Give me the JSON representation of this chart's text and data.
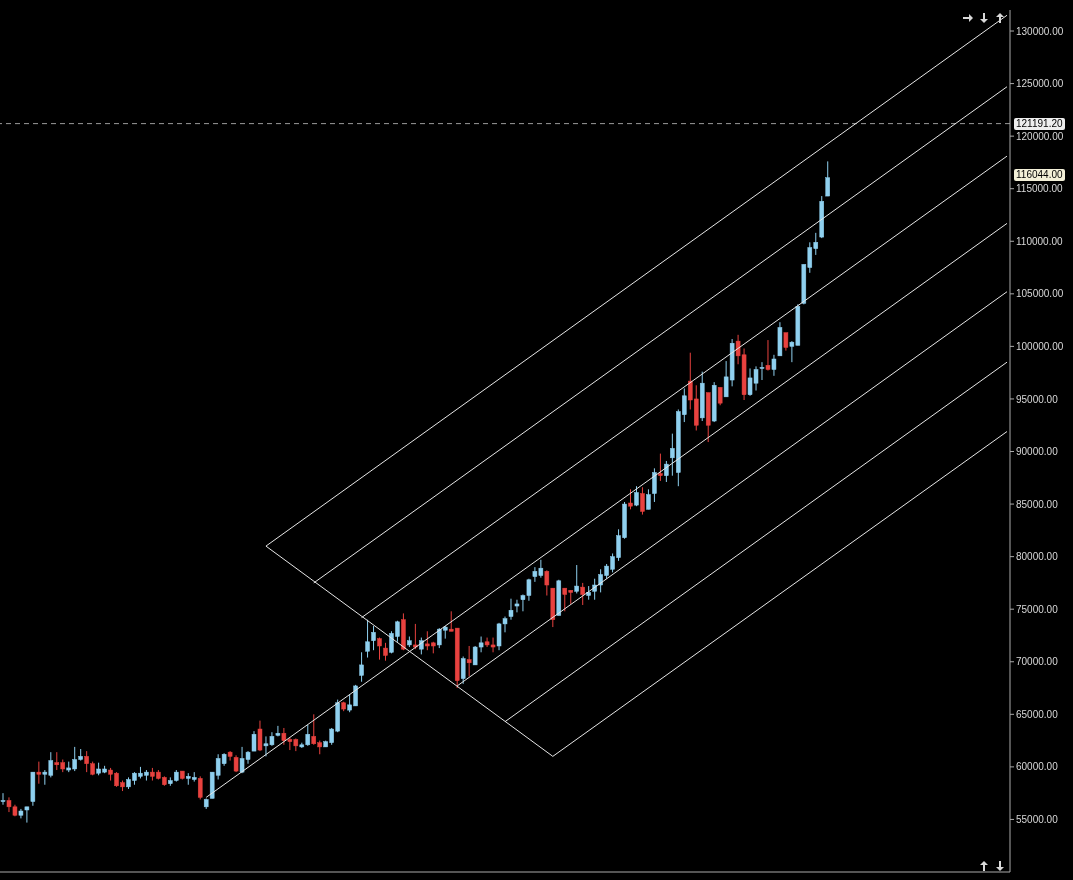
{
  "chart_data": {
    "type": "candlestick",
    "categories": [
      null,
      null,
      null,
      null,
      null,
      null,
      null,
      null,
      null,
      null,
      null,
      null,
      null,
      null,
      null,
      null,
      null,
      null,
      null,
      null,
      null,
      null,
      null,
      null,
      null,
      null,
      null,
      null,
      null,
      null,
      null,
      null,
      null,
      null,
      null,
      null,
      null,
      null,
      null,
      null,
      null,
      null,
      null,
      null,
      null,
      null,
      null,
      null,
      null,
      null,
      null,
      null,
      null,
      null,
      null,
      null,
      null,
      null,
      null,
      null,
      null,
      null,
      null,
      null,
      null,
      null,
      null,
      null,
      null,
      null,
      null,
      null,
      null,
      null,
      null,
      null,
      null,
      null,
      null,
      null,
      null,
      null,
      null,
      null,
      null,
      null,
      null,
      null,
      null,
      null,
      null,
      null,
      null,
      null,
      null,
      null,
      null,
      null,
      null,
      null,
      null,
      null,
      null,
      null,
      null,
      null,
      null,
      null,
      null,
      null,
      null,
      null,
      null,
      null,
      null,
      null,
      null,
      null,
      null,
      null,
      null,
      null,
      null,
      null,
      null,
      null,
      null,
      null,
      null,
      null,
      null,
      null,
      null,
      null,
      null,
      null,
      null,
      null,
      null,
      null,
      null,
      null,
      null,
      null,
      null,
      null,
      null,
      null,
      null,
      null,
      null,
      null,
      null,
      null,
      null,
      null,
      null,
      null,
      null,
      null,
      null,
      null,
      null,
      null,
      null,
      null,
      null,
      null,
      null
    ],
    "ohlc": [
      [
        56700,
        57500,
        56400,
        56800
      ],
      [
        56800,
        57100,
        55700,
        56200
      ],
      [
        56200,
        56400,
        55300,
        55400
      ],
      [
        55400,
        56000,
        55100,
        55800
      ],
      [
        55900,
        56200,
        54700,
        56200
      ],
      [
        56700,
        59500,
        56300,
        59500
      ],
      [
        59500,
        60500,
        58400,
        59300
      ],
      [
        59300,
        59700,
        58300,
        59500
      ],
      [
        59200,
        61400,
        59000,
        60600
      ],
      [
        60400,
        61400,
        59700,
        60200
      ],
      [
        60400,
        60700,
        59500,
        59800
      ],
      [
        59700,
        60500,
        59500,
        59900
      ],
      [
        59800,
        61900,
        59600,
        60700
      ],
      [
        60700,
        61700,
        60600,
        61000
      ],
      [
        61000,
        61500,
        59500,
        60300
      ],
      [
        60300,
        60500,
        59200,
        59300
      ],
      [
        59400,
        60400,
        59200,
        59800
      ],
      [
        59500,
        60100,
        59400,
        59800
      ],
      [
        59700,
        59900,
        58700,
        59300
      ],
      [
        59400,
        59500,
        58100,
        58200
      ],
      [
        58500,
        58700,
        57700,
        58100
      ],
      [
        58100,
        59000,
        57900,
        58800
      ],
      [
        58700,
        59500,
        58300,
        59400
      ],
      [
        59100,
        60000,
        58900,
        59400
      ],
      [
        59200,
        59700,
        58700,
        59500
      ],
      [
        59500,
        59900,
        58700,
        59100
      ],
      [
        59500,
        59700,
        58800,
        58900
      ],
      [
        59000,
        59100,
        58200,
        58300
      ],
      [
        58400,
        59000,
        58200,
        58700
      ],
      [
        58700,
        59700,
        58600,
        59500
      ],
      [
        59600,
        59600,
        58800,
        58900
      ],
      [
        58900,
        59400,
        58300,
        59100
      ],
      [
        58800,
        59500,
        58600,
        59000
      ],
      [
        58900,
        59100,
        56900,
        57100
      ],
      [
        56200,
        57000,
        56000,
        56900
      ],
      [
        57000,
        59500,
        57000,
        59500
      ],
      [
        59200,
        61200,
        58800,
        60800
      ],
      [
        60300,
        61300,
        60100,
        61200
      ],
      [
        61400,
        61500,
        60600,
        61000
      ],
      [
        60900,
        61100,
        59500,
        59600
      ],
      [
        59500,
        61900,
        59400,
        60800
      ],
      [
        60700,
        61500,
        60300,
        61400
      ],
      [
        61500,
        63400,
        61500,
        63100
      ],
      [
        63600,
        64400,
        61500,
        61600
      ],
      [
        62000,
        62900,
        61000,
        62200
      ],
      [
        62100,
        63300,
        62000,
        62900
      ],
      [
        63000,
        63900,
        62900,
        63200
      ],
      [
        63200,
        63700,
        62100,
        62500
      ],
      [
        62600,
        62800,
        61600,
        62400
      ],
      [
        62600,
        62700,
        61500,
        62000
      ],
      [
        61900,
        62300,
        61800,
        62100
      ],
      [
        62100,
        64000,
        62000,
        63100
      ],
      [
        62900,
        65000,
        62100,
        62200
      ],
      [
        62300,
        62500,
        61200,
        61900
      ],
      [
        61900,
        62500,
        61900,
        62400
      ],
      [
        62300,
        63700,
        62100,
        63600
      ],
      [
        63400,
        66400,
        63300,
        66100
      ],
      [
        66100,
        66200,
        65300,
        65500
      ],
      [
        65400,
        66900,
        65200,
        65900
      ],
      [
        65800,
        67800,
        65800,
        67700
      ],
      [
        68700,
        70900,
        68100,
        69700
      ],
      [
        71000,
        74000,
        70400,
        71900
      ],
      [
        72000,
        73400,
        71100,
        72800
      ],
      [
        72200,
        72300,
        70200,
        71500
      ],
      [
        71300,
        71800,
        70100,
        70600
      ],
      [
        70900,
        72900,
        70800,
        72700
      ],
      [
        72400,
        73900,
        71900,
        73800
      ],
      [
        74000,
        74600,
        71100,
        71200
      ],
      [
        71600,
        72400,
        71400,
        72000
      ],
      [
        71600,
        73600,
        71200,
        71400
      ],
      [
        71200,
        72300,
        70700,
        72000
      ],
      [
        71700,
        72900,
        71100,
        71500
      ],
      [
        71800,
        71900,
        70800,
        71500
      ],
      [
        71600,
        73200,
        71300,
        73100
      ],
      [
        73000,
        73400,
        72200,
        73300
      ],
      [
        73100,
        74800,
        72900,
        72900
      ],
      [
        73200,
        73200,
        67500,
        68200
      ],
      [
        68400,
        70500,
        67900,
        70300
      ],
      [
        70200,
        71500,
        68600,
        69900
      ],
      [
        69700,
        71500,
        69700,
        71400
      ],
      [
        71400,
        72400,
        70900,
        71800
      ],
      [
        71900,
        72300,
        71400,
        71600
      ],
      [
        71600,
        72300,
        70900,
        71400
      ],
      [
        71500,
        73700,
        71100,
        73600
      ],
      [
        73600,
        74300,
        72800,
        74100
      ],
      [
        74300,
        76000,
        74000,
        74900
      ],
      [
        75300,
        75900,
        74700,
        75500
      ],
      [
        75900,
        76400,
        74800,
        76300
      ],
      [
        76300,
        77900,
        75800,
        77800
      ],
      [
        78100,
        79000,
        77600,
        78600
      ],
      [
        78200,
        79700,
        78000,
        78900
      ],
      [
        78600,
        78700,
        76300,
        77300
      ],
      [
        77000,
        77000,
        73300,
        74000
      ],
      [
        74400,
        77800,
        74400,
        77700
      ],
      [
        77000,
        77000,
        74800,
        76400
      ],
      [
        76800,
        76800,
        75500,
        76600
      ],
      [
        76700,
        79200,
        76500,
        77200
      ],
      [
        77100,
        77500,
        75400,
        76400
      ],
      [
        76300,
        77200,
        75900,
        76600
      ],
      [
        76700,
        77900,
        75900,
        77300
      ],
      [
        77300,
        78800,
        76600,
        78300
      ],
      [
        78200,
        79300,
        77900,
        79100
      ],
      [
        78800,
        80300,
        78500,
        80000
      ],
      [
        79900,
        82600,
        79600,
        82000
      ],
      [
        81800,
        85200,
        81700,
        85000
      ],
      [
        85100,
        86400,
        84500,
        84800
      ],
      [
        84900,
        86700,
        84800,
        86100
      ],
      [
        86000,
        86600,
        84000,
        84300
      ],
      [
        84500,
        86400,
        84500,
        85900
      ],
      [
        86000,
        88400,
        85200,
        88000
      ],
      [
        87900,
        89800,
        87200,
        87700
      ],
      [
        87700,
        89100,
        87100,
        88800
      ],
      [
        89400,
        91700,
        87700,
        90300
      ],
      [
        88000,
        94000,
        86700,
        93800
      ],
      [
        93500,
        96000,
        92800,
        95300
      ],
      [
        96700,
        99400,
        94000,
        94900
      ],
      [
        95000,
        96300,
        92000,
        92500
      ],
      [
        93200,
        97600,
        92900,
        96500
      ],
      [
        95600,
        95600,
        90900,
        92500
      ],
      [
        92900,
        96600,
        92800,
        96300
      ],
      [
        96100,
        96100,
        94400,
        94600
      ],
      [
        95200,
        98600,
        95200,
        97100
      ],
      [
        96800,
        100700,
        96200,
        100300
      ],
      [
        100500,
        101100,
        98300,
        99100
      ],
      [
        99200,
        99800,
        94900,
        95400
      ],
      [
        95400,
        97900,
        95300,
        97000
      ],
      [
        96500,
        98100,
        95800,
        97800
      ],
      [
        97900,
        98500,
        96800,
        98000
      ],
      [
        98200,
        100600,
        97700,
        97800
      ],
      [
        97800,
        99200,
        97200,
        98800
      ],
      [
        99100,
        102300,
        99100,
        101800
      ],
      [
        101300,
        101300,
        99600,
        99900
      ],
      [
        100000,
        100500,
        98500,
        100400
      ],
      [
        100100,
        104000,
        100100,
        103800
      ],
      [
        104100,
        107800,
        104000,
        107800
      ],
      [
        107500,
        109900,
        107000,
        109400
      ],
      [
        109300,
        110800,
        108700,
        109900
      ],
      [
        110400,
        114300,
        110300,
        113800
      ],
      [
        114300,
        117600,
        114300,
        116044
      ],
      null,
      null,
      null,
      null,
      null,
      null,
      null,
      null,
      null,
      null,
      null,
      null,
      null,
      null,
      null,
      null,
      null,
      null,
      null,
      null,
      null,
      null,
      null,
      null,
      null,
      null,
      null,
      null,
      null,
      null
    ],
    "colors": [
      "#8fd0ef",
      "#e8423f",
      "#e8423f",
      "#8fd0ef",
      "#8fd0ef",
      "#8fd0ef",
      "#e8423f",
      "#8fd0ef",
      "#8fd0ef",
      "#e8423f",
      "#e8423f",
      "#8fd0ef",
      "#8fd0ef",
      "#8fd0ef",
      "#e8423f",
      "#e8423f",
      "#8fd0ef",
      "#8fd0ef",
      "#e8423f",
      "#e8423f",
      "#e8423f",
      "#8fd0ef",
      "#8fd0ef",
      "#8fd0ef",
      "#8fd0ef",
      "#e8423f",
      "#e8423f",
      "#e8423f",
      "#8fd0ef",
      "#8fd0ef",
      "#e8423f",
      "#8fd0ef",
      "#8fd0ef",
      "#e8423f",
      "#8fd0ef",
      "#8fd0ef",
      "#8fd0ef",
      "#8fd0ef",
      "#e8423f",
      "#e8423f",
      "#8fd0ef",
      "#8fd0ef",
      "#8fd0ef",
      "#e8423f",
      "#8fd0ef",
      "#8fd0ef",
      "#8fd0ef",
      "#e8423f",
      "#e8423f",
      "#e8423f",
      "#8fd0ef",
      "#8fd0ef",
      "#e8423f",
      "#e8423f",
      "#8fd0ef",
      "#8fd0ef",
      "#8fd0ef",
      "#e8423f",
      "#8fd0ef",
      "#8fd0ef",
      "#8fd0ef",
      "#8fd0ef",
      "#8fd0ef",
      "#e8423f",
      "#e8423f",
      "#8fd0ef",
      "#8fd0ef",
      "#e8423f",
      "#8fd0ef",
      "#e8423f",
      "#8fd0ef",
      "#e8423f",
      "#e8423f",
      "#8fd0ef",
      "#8fd0ef",
      "#e8423f",
      "#e8423f",
      "#8fd0ef",
      "#e8423f",
      "#8fd0ef",
      "#8fd0ef",
      "#e8423f",
      "#e8423f",
      "#8fd0ef",
      "#8fd0ef",
      "#8fd0ef",
      "#8fd0ef",
      "#8fd0ef",
      "#8fd0ef",
      "#8fd0ef",
      "#8fd0ef",
      "#e8423f",
      "#e8423f",
      "#8fd0ef",
      "#e8423f",
      "#e8423f",
      "#8fd0ef",
      "#e8423f",
      "#8fd0ef",
      "#8fd0ef",
      "#8fd0ef",
      "#8fd0ef",
      "#8fd0ef",
      "#8fd0ef",
      "#8fd0ef",
      "#e8423f",
      "#8fd0ef",
      "#e8423f",
      "#8fd0ef",
      "#8fd0ef",
      "#e8423f",
      "#8fd0ef",
      "#8fd0ef",
      "#8fd0ef",
      "#8fd0ef",
      "#e8423f",
      "#e8423f",
      "#8fd0ef",
      "#e8423f",
      "#8fd0ef",
      "#e8423f",
      "#8fd0ef",
      "#8fd0ef",
      "#e8423f",
      "#e8423f",
      "#8fd0ef",
      "#8fd0ef",
      "#8fd0ef",
      "#e8423f",
      "#8fd0ef",
      "#8fd0ef",
      "#e8423f",
      "#8fd0ef",
      "#8fd0ef",
      "#8fd0ef",
      "#8fd0ef",
      "#8fd0ef",
      "#8fd0ef",
      "#8fd0ef",
      null,
      null,
      null,
      null,
      null,
      null,
      null,
      null,
      null,
      null,
      null,
      null,
      null,
      null,
      null,
      null,
      null,
      null,
      null,
      null,
      null,
      null,
      null,
      null,
      null,
      null,
      null,
      null,
      null,
      null
    ],
    "series": [
      {
        "type": "line",
        "color": "#e6e6e6",
        "values": [
          null,
          null,
          null,
          null,
          null,
          null,
          null,
          null,
          null,
          null,
          null,
          null,
          null,
          null,
          null,
          null,
          null,
          null,
          null,
          null,
          null,
          null,
          null,
          null,
          null,
          null,
          null,
          null,
          null,
          null,
          null,
          null,
          null,
          null,
          null,
          null,
          null,
          null,
          null,
          null,
          null,
          null,
          null,
          null,
          81000,
          null,
          null,
          null,
          null,
          null,
          null,
          null,
          null,
          null,
          null,
          null,
          null,
          null,
          null,
          null,
          null,
          null,
          null,
          null,
          null,
          null,
          null,
          null,
          null,
          null,
          null,
          null,
          null,
          null,
          null,
          null,
          null,
          null,
          null,
          null,
          null,
          null,
          null,
          null,
          null,
          null,
          null,
          null,
          null,
          null,
          null,
          null,
          null,
          null,
          null,
          null,
          null,
          null,
          null,
          null,
          null,
          null,
          null,
          null,
          null,
          null,
          null,
          null,
          null,
          null,
          null,
          null,
          null,
          null,
          null,
          null,
          null,
          null,
          null,
          null,
          null,
          null,
          null,
          null,
          null,
          null,
          null,
          null,
          null,
          null,
          null,
          null,
          null,
          null,
          null,
          null,
          null,
          null,
          null,
          null,
          null,
          null,
          null,
          null,
          null,
          null,
          null,
          null,
          null,
          null,
          null,
          null,
          null,
          null,
          null,
          null,
          null,
          null,
          null,
          null,
          null,
          null,
          null,
          null,
          null,
          null,
          null,
          null,
          131500
        ]
      },
      {
        "type": "line",
        "color": "#e6e6e6",
        "values": [
          null,
          null,
          null,
          null,
          null,
          null,
          null,
          null,
          null,
          null,
          null,
          null,
          null,
          null,
          null,
          null,
          null,
          null,
          null,
          null,
          null,
          null,
          null,
          null,
          null,
          null,
          null,
          null,
          null,
          null,
          null,
          null,
          null,
          null,
          null,
          null,
          null,
          null,
          null,
          null,
          null,
          null,
          null,
          null,
          null,
          null,
          null,
          null,
          null,
          null,
          null,
          null,
          77500,
          null,
          null,
          null,
          null,
          null,
          null,
          null,
          null,
          null,
          null,
          null,
          null,
          null,
          null,
          null,
          null,
          null,
          null,
          null,
          null,
          null,
          null,
          null,
          null,
          null,
          null,
          null,
          null,
          null,
          null,
          null,
          null,
          null,
          null,
          null,
          null,
          null,
          null,
          null,
          null,
          null,
          null,
          null,
          null,
          null,
          null,
          null,
          null,
          null,
          null,
          null,
          null,
          null,
          null,
          null,
          null,
          null,
          null,
          null,
          null,
          null,
          null,
          null,
          null,
          null,
          null,
          null,
          null,
          null,
          null,
          null,
          null,
          null,
          null,
          null,
          null,
          null,
          null,
          null,
          null,
          null,
          null,
          null,
          null,
          null,
          null,
          null,
          null,
          null,
          null,
          null,
          null,
          null,
          null,
          null,
          null,
          null,
          null,
          null,
          null,
          null,
          null,
          null,
          null,
          null,
          null,
          null,
          null,
          null,
          null,
          null,
          null,
          null,
          null,
          null,
          124700
        ]
      },
      {
        "type": "line",
        "color": "#e6e6e6",
        "values": [
          null,
          null,
          null,
          null,
          null,
          null,
          null,
          null,
          null,
          null,
          null,
          null,
          null,
          null,
          null,
          null,
          null,
          null,
          null,
          null,
          null,
          null,
          null,
          null,
          null,
          null,
          null,
          null,
          null,
          null,
          null,
          null,
          null,
          null,
          null,
          null,
          null,
          null,
          null,
          null,
          null,
          null,
          null,
          null,
          null,
          null,
          null,
          null,
          null,
          null,
          null,
          null,
          null,
          null,
          null,
          null,
          null,
          null,
          null,
          null,
          74200,
          null,
          null,
          null,
          null,
          null,
          null,
          null,
          null,
          null,
          null,
          null,
          null,
          null,
          null,
          null,
          null,
          null,
          null,
          null,
          null,
          null,
          null,
          null,
          null,
          null,
          null,
          null,
          null,
          null,
          null,
          null,
          null,
          null,
          null,
          null,
          null,
          null,
          null,
          null,
          null,
          null,
          null,
          null,
          null,
          null,
          null,
          null,
          null,
          null,
          null,
          null,
          null,
          null,
          null,
          null,
          null,
          null,
          null,
          null,
          null,
          null,
          null,
          null,
          null,
          null,
          null,
          null,
          null,
          null,
          null,
          null,
          null,
          null,
          null,
          null,
          null,
          null,
          null,
          null,
          null,
          null,
          null,
          null,
          null,
          null,
          null,
          null,
          null,
          null,
          null,
          null,
          null,
          null,
          null,
          null,
          null,
          null,
          null,
          null,
          null,
          null,
          null,
          null,
          null,
          null,
          null,
          null,
          118100
        ]
      },
      {
        "type": "line",
        "color": "#e6e6e6",
        "values": [
          null,
          null,
          null,
          null,
          null,
          null,
          null,
          null,
          null,
          null,
          null,
          null,
          null,
          null,
          null,
          null,
          null,
          null,
          null,
          null,
          null,
          null,
          null,
          null,
          null,
          null,
          null,
          null,
          null,
          null,
          null,
          null,
          null,
          null,
          57100,
          null,
          null,
          null,
          null,
          null,
          null,
          null,
          null,
          null,
          null,
          null,
          null,
          null,
          null,
          null,
          null,
          null,
          null,
          null,
          null,
          null,
          null,
          null,
          null,
          null,
          null,
          null,
          null,
          null,
          null,
          null,
          null,
          null,
          null,
          null,
          null,
          null,
          null,
          null,
          null,
          null,
          null,
          null,
          null,
          null,
          null,
          null,
          null,
          null,
          null,
          null,
          null,
          null,
          null,
          null,
          null,
          null,
          null,
          null,
          null,
          null,
          null,
          null,
          null,
          null,
          null,
          null,
          null,
          null,
          null,
          null,
          null,
          null,
          null,
          null,
          null,
          null,
          null,
          null,
          null,
          null,
          null,
          null,
          null,
          null,
          null,
          null,
          null,
          null,
          null,
          null,
          null,
          null,
          null,
          null,
          null,
          null,
          null,
          null,
          null,
          null,
          null,
          null,
          null,
          null,
          null,
          null,
          null,
          null,
          null,
          null,
          null,
          null,
          null,
          null,
          null,
          null,
          null,
          null,
          null,
          null,
          null,
          null,
          null,
          null,
          null,
          null,
          null,
          null,
          null,
          null,
          null,
          null,
          111700
        ]
      },
      {
        "type": "line",
        "color": "#e6e6e6",
        "values": [
          null,
          null,
          null,
          null,
          null,
          null,
          null,
          null,
          null,
          null,
          null,
          null,
          null,
          null,
          null,
          null,
          null,
          null,
          null,
          null,
          null,
          null,
          null,
          null,
          null,
          null,
          null,
          null,
          null,
          null,
          null,
          null,
          null,
          null,
          null,
          null,
          null,
          null,
          null,
          null,
          null,
          null,
          null,
          null,
          null,
          null,
          null,
          null,
          null,
          null,
          null,
          null,
          null,
          null,
          null,
          null,
          null,
          null,
          null,
          null,
          null,
          null,
          null,
          null,
          null,
          null,
          null,
          null,
          null,
          null,
          null,
          null,
          null,
          null,
          null,
          null,
          67700,
          null,
          null,
          null,
          null,
          null,
          null,
          null,
          null,
          null,
          null,
          null,
          null,
          null,
          null,
          null,
          null,
          null,
          null,
          null,
          null,
          null,
          null,
          null,
          null,
          null,
          null,
          null,
          null,
          null,
          null,
          null,
          null,
          null,
          null,
          null,
          null,
          null,
          null,
          null,
          null,
          null,
          null,
          null,
          null,
          null,
          null,
          null,
          null,
          null,
          null,
          null,
          null,
          null,
          null,
          null,
          null,
          null,
          null,
          null,
          null,
          null,
          null,
          null,
          null,
          null,
          null,
          null,
          null,
          null,
          null,
          null,
          null,
          null,
          null,
          null,
          null,
          null,
          null,
          null,
          null,
          null,
          null,
          null,
          null,
          null,
          null,
          null,
          null,
          null,
          null,
          null,
          105200
        ]
      },
      {
        "type": "line",
        "color": "#e6e6e6",
        "values": [
          null,
          null,
          null,
          null,
          null,
          null,
          null,
          null,
          null,
          null,
          null,
          null,
          null,
          null,
          null,
          null,
          null,
          null,
          null,
          null,
          null,
          null,
          null,
          null,
          null,
          null,
          null,
          null,
          null,
          null,
          null,
          null,
          null,
          null,
          null,
          null,
          null,
          null,
          null,
          null,
          null,
          null,
          null,
          null,
          null,
          null,
          null,
          null,
          null,
          null,
          null,
          null,
          null,
          null,
          null,
          null,
          null,
          null,
          null,
          null,
          null,
          null,
          null,
          null,
          null,
          null,
          null,
          null,
          null,
          null,
          null,
          null,
          null,
          null,
          null,
          null,
          null,
          null,
          null,
          null,
          null,
          null,
          null,
          null,
          64300,
          null,
          null,
          null,
          null,
          null,
          null,
          null,
          null,
          null,
          null,
          null,
          null,
          null,
          null,
          null,
          null,
          null,
          null,
          null,
          null,
          null,
          null,
          null,
          null,
          null,
          null,
          null,
          null,
          null,
          null,
          null,
          null,
          null,
          null,
          null,
          null,
          null,
          null,
          null,
          null,
          null,
          null,
          null,
          null,
          null,
          null,
          null,
          null,
          null,
          null,
          null,
          null,
          null,
          null,
          null,
          null,
          null,
          null,
          null,
          null,
          null,
          null,
          null,
          null,
          null,
          null,
          null,
          null,
          null,
          null,
          null,
          null,
          null,
          null,
          null,
          null,
          null,
          null,
          null,
          null,
          null,
          null,
          null,
          98500
        ]
      },
      {
        "type": "line",
        "color": "#e6e6e6",
        "values": [
          null,
          null,
          null,
          null,
          null,
          null,
          null,
          null,
          null,
          null,
          null,
          null,
          null,
          null,
          null,
          null,
          null,
          null,
          null,
          null,
          null,
          null,
          null,
          null,
          null,
          null,
          null,
          null,
          null,
          null,
          null,
          null,
          null,
          null,
          null,
          null,
          null,
          null,
          null,
          null,
          null,
          null,
          null,
          null,
          null,
          null,
          null,
          null,
          null,
          null,
          null,
          null,
          null,
          null,
          null,
          null,
          null,
          null,
          null,
          null,
          null,
          null,
          null,
          null,
          null,
          null,
          null,
          null,
          null,
          null,
          null,
          null,
          null,
          null,
          null,
          null,
          null,
          null,
          null,
          null,
          null,
          null,
          null,
          null,
          null,
          null,
          null,
          null,
          null,
          null,
          null,
          null,
          61000,
          null,
          null,
          null,
          null,
          null,
          null,
          null,
          null,
          null,
          null,
          null,
          null,
          null,
          null,
          null,
          null,
          null,
          null,
          null,
          null,
          null,
          null,
          null,
          null,
          null,
          null,
          null,
          null,
          null,
          null,
          null,
          null,
          null,
          null,
          null,
          null,
          null,
          null,
          null,
          null,
          null,
          null,
          null,
          null,
          null,
          null,
          null,
          null,
          null,
          null,
          null,
          null,
          null,
          null,
          null,
          null,
          null,
          null,
          null,
          null,
          null,
          null,
          null,
          null,
          null,
          null,
          null,
          null,
          null,
          null,
          null,
          null,
          null,
          null,
          null,
          91900
        ]
      },
      {
        "type": "line",
        "color": "#e6e6e6",
        "values": [
          null,
          null,
          null,
          null,
          null,
          null,
          null,
          null,
          null,
          null,
          null,
          null,
          null,
          null,
          null,
          null,
          null,
          null,
          null,
          null,
          null,
          null,
          null,
          null,
          null,
          null,
          null,
          null,
          null,
          null,
          null,
          null,
          null,
          null,
          null,
          null,
          null,
          null,
          null,
          null,
          null,
          null,
          null,
          null,
          81000,
          null,
          null,
          null,
          null,
          null,
          null,
          null,
          null,
          null,
          null,
          null,
          null,
          null,
          null,
          null,
          null,
          null,
          null,
          null,
          null,
          null,
          null,
          null,
          null,
          null,
          null,
          null,
          null,
          null,
          null,
          null,
          null,
          null,
          null,
          null,
          null,
          null,
          null,
          null,
          null,
          null,
          null,
          null,
          null,
          null,
          null,
          null,
          61000,
          null,
          null,
          null,
          null,
          null,
          null,
          null,
          null,
          null,
          null,
          null,
          null,
          null,
          null,
          null,
          null,
          null,
          null,
          null,
          null,
          null,
          null,
          null,
          null,
          null,
          null,
          null,
          null,
          null,
          null,
          null,
          null,
          null,
          null,
          null,
          null,
          null,
          null,
          null,
          null,
          null,
          null,
          null,
          null,
          null,
          null,
          null,
          null,
          null,
          null,
          null,
          null,
          null,
          null,
          null,
          null,
          null,
          null,
          null,
          null,
          null,
          null,
          null,
          null,
          null,
          null,
          null,
          null,
          null,
          null,
          null,
          null,
          null,
          null,
          null,
          null
        ]
      }
    ],
    "ylim": [
      50000,
      132000
    ],
    "yticks": [
      {
        "value": 55000,
        "label": "55000.00"
      },
      {
        "value": 60000,
        "label": "60000.00"
      },
      {
        "value": 65000,
        "label": "65000.00"
      },
      {
        "value": 70000,
        "label": "70000.00"
      },
      {
        "value": 75000,
        "label": "75000.00"
      },
      {
        "value": 80000,
        "label": "80000.00"
      },
      {
        "value": 85000,
        "label": "85000.00"
      },
      {
        "value": 90000,
        "label": "90000.00"
      },
      {
        "value": 95000,
        "label": "95000.00"
      },
      {
        "value": 100000,
        "label": "100000.00"
      },
      {
        "value": 105000,
        "label": "105000.00"
      },
      {
        "value": 110000,
        "label": "110000.00"
      },
      {
        "value": 115000,
        "label": "115000.00"
      },
      {
        "value": 120000,
        "label": "120000.00"
      },
      {
        "value": 125000,
        "label": "125000.00"
      },
      {
        "value": 130000,
        "label": "130000.00"
      }
    ],
    "ref_lines": [
      {
        "axis": "y",
        "value": 121191.2,
        "label": "121191.20",
        "color": "#9a9a9a",
        "line_style": "dashed"
      }
    ],
    "annotations": [
      "116044.00"
    ],
    "tick_labels": "y",
    "line_style": "solid",
    "marker": "none"
  }
}
